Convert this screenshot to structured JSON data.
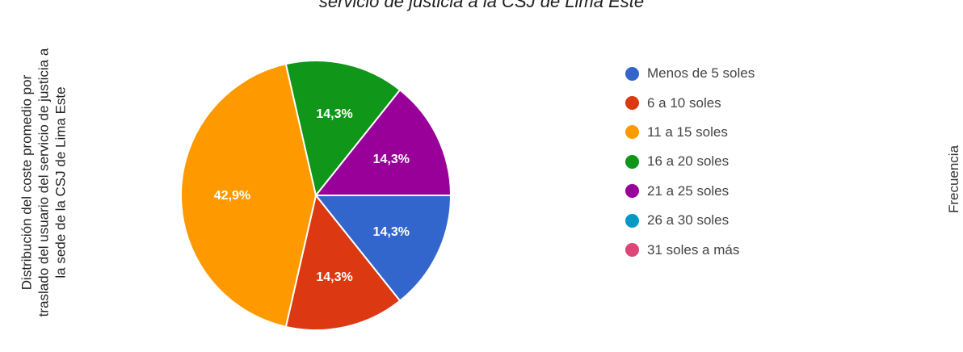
{
  "chart_data": {
    "type": "pie",
    "title": "servicio de justicia a la CSJ de Lima Este",
    "left_axis_label": [
      "Distribución del coste promedio por",
      "traslado del usuario del servicio de justicia a",
      "la sede de la CSJ de Lima Este"
    ],
    "right_axis_label": "Frecuencia",
    "legend_position": "right",
    "slices": [
      {
        "label": "Menos de 5 soles",
        "value": 14.3,
        "value_label": "14,3%",
        "color": "#3366cc"
      },
      {
        "label": "6 a 10 soles",
        "value": 14.3,
        "value_label": "14,3%",
        "color": "#dc3912"
      },
      {
        "label": "11 a 15 soles",
        "value": 42.9,
        "value_label": "42,9%",
        "color": "#ff9900"
      },
      {
        "label": "16 a 20 soles",
        "value": 14.3,
        "value_label": "14,3%",
        "color": "#109618"
      },
      {
        "label": "21 a 25 soles",
        "value": 14.3,
        "value_label": "14,3%",
        "color": "#990099"
      },
      {
        "label": "26 a 30 soles",
        "value": 0,
        "value_label": "",
        "color": "#0099c6"
      },
      {
        "label": "31 soles a más",
        "value": 0,
        "value_label": "",
        "color": "#dd4477"
      }
    ]
  }
}
